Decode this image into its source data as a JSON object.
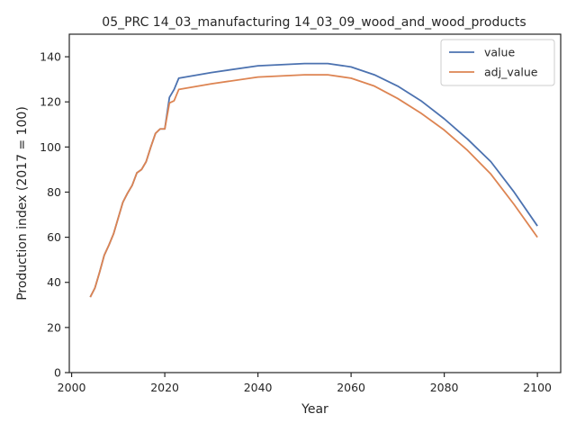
{
  "chart_data": {
    "type": "line",
    "title": "05_PRC 14_03_manufacturing 14_03_09_wood_and_wood_products",
    "xlabel": "Year",
    "ylabel": "Production index (2017 = 100)",
    "xlim": [
      1999.5,
      2105
    ],
    "ylim": [
      0,
      150
    ],
    "xticks": [
      2000,
      2020,
      2040,
      2060,
      2080,
      2100
    ],
    "yticks": [
      0,
      20,
      40,
      60,
      80,
      100,
      120,
      140
    ],
    "grid": false,
    "legend_position": "top-right",
    "series": [
      {
        "name": "value",
        "color": "#4c72b0",
        "x": [
          2004,
          2005,
          2006,
          2007,
          2008,
          2009,
          2010,
          2011,
          2012,
          2013,
          2014,
          2015,
          2016,
          2017,
          2018,
          2019,
          2020,
          2021,
          2022,
          2023,
          2030,
          2040,
          2050,
          2055,
          2060,
          2065,
          2070,
          2075,
          2080,
          2085,
          2090,
          2095,
          2100
        ],
        "values": [
          33.5,
          37.5,
          44.5,
          52.0,
          56.5,
          61.5,
          68.5,
          75.5,
          79.5,
          83.0,
          88.5,
          90.0,
          93.5,
          100.0,
          106.0,
          108.0,
          108.0,
          122.0,
          125.5,
          130.5,
          133.0,
          136.0,
          137.0,
          137.0,
          135.5,
          132.0,
          127.0,
          120.5,
          112.5,
          103.5,
          93.5,
          80.0,
          65.0
        ]
      },
      {
        "name": "adj_value",
        "color": "#dd8452",
        "x": [
          2004,
          2005,
          2006,
          2007,
          2008,
          2009,
          2010,
          2011,
          2012,
          2013,
          2014,
          2015,
          2016,
          2017,
          2018,
          2019,
          2020,
          2021,
          2022,
          2023,
          2030,
          2040,
          2050,
          2055,
          2060,
          2065,
          2070,
          2075,
          2080,
          2085,
          2090,
          2095,
          2100
        ],
        "values": [
          33.5,
          37.5,
          44.5,
          52.0,
          56.5,
          61.5,
          68.5,
          75.5,
          79.5,
          83.0,
          88.5,
          90.0,
          93.5,
          100.0,
          106.0,
          108.0,
          108.0,
          119.5,
          120.5,
          125.5,
          128.0,
          131.0,
          132.0,
          132.0,
          130.5,
          127.0,
          121.5,
          115.0,
          107.5,
          98.5,
          88.0,
          74.5,
          60.0
        ]
      }
    ]
  }
}
